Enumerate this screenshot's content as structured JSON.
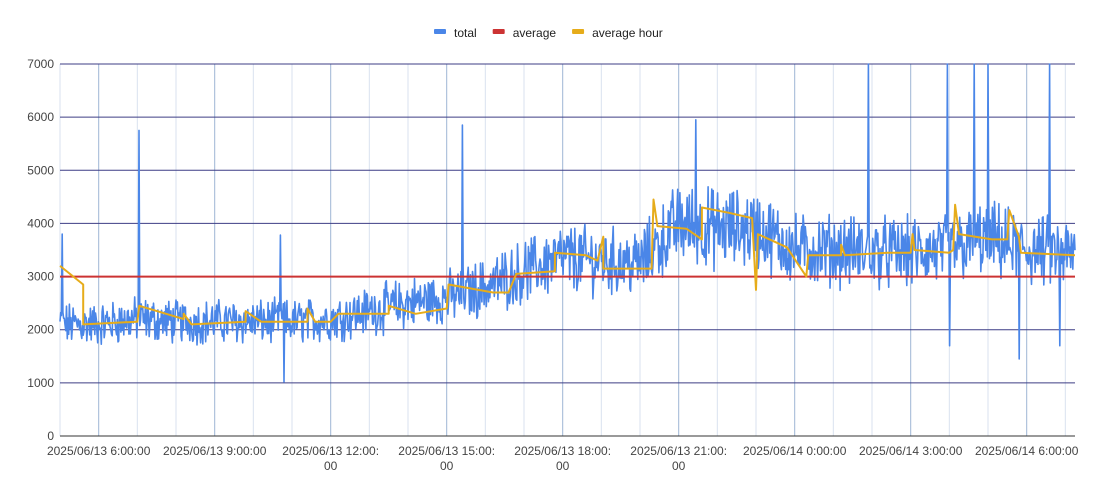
{
  "chart_data": {
    "type": "line",
    "title": "",
    "xlabel": "",
    "ylabel": "",
    "ylim": [
      0,
      7000
    ],
    "y_ticks": [
      0,
      1000,
      2000,
      3000,
      4000,
      5000,
      6000,
      7000
    ],
    "x_tick_labels": [
      [
        "2025/06/13 6:00:00"
      ],
      [
        "2025/06/13 9:00:00"
      ],
      [
        "2025/06/13 12:00:",
        "00"
      ],
      [
        "2025/06/13 15:00:",
        "00"
      ],
      [
        "2025/06/13 18:00:",
        "00"
      ],
      [
        "2025/06/13 21:00:",
        "00"
      ],
      [
        "2025/06/14 0:00:00"
      ],
      [
        "2025/06/14 3:00:00"
      ],
      [
        "2025/06/14 6:00:00"
      ]
    ],
    "x_range_hours": [
      5.0,
      31.25
    ],
    "x_tick_hours": [
      6,
      9,
      12,
      15,
      18,
      21,
      24,
      27,
      30
    ],
    "grid": true,
    "legend_position": "top",
    "series": [
      {
        "name": "total",
        "color": "#4a86e8",
        "approx_trend": [
          {
            "x": 5.0,
            "y": 2100
          },
          {
            "x": 6.0,
            "y": 2100
          },
          {
            "x": 7.0,
            "y": 2200
          },
          {
            "x": 8.0,
            "y": 2150
          },
          {
            "x": 9.0,
            "y": 2150
          },
          {
            "x": 10.0,
            "y": 2150
          },
          {
            "x": 11.0,
            "y": 2150
          },
          {
            "x": 12.0,
            "y": 2200
          },
          {
            "x": 13.0,
            "y": 2350
          },
          {
            "x": 14.0,
            "y": 2500
          },
          {
            "x": 15.0,
            "y": 2600
          },
          {
            "x": 16.0,
            "y": 2800
          },
          {
            "x": 17.0,
            "y": 3100
          },
          {
            "x": 18.0,
            "y": 3350
          },
          {
            "x": 19.0,
            "y": 3300
          },
          {
            "x": 20.0,
            "y": 3250
          },
          {
            "x": 21.0,
            "y": 4000
          },
          {
            "x": 22.0,
            "y": 3900
          },
          {
            "x": 23.0,
            "y": 3900
          },
          {
            "x": 24.0,
            "y": 3500
          },
          {
            "x": 25.0,
            "y": 3500
          },
          {
            "x": 26.0,
            "y": 3450
          },
          {
            "x": 27.0,
            "y": 3450
          },
          {
            "x": 28.0,
            "y": 3500
          },
          {
            "x": 29.0,
            "y": 3700
          },
          {
            "x": 30.0,
            "y": 3500
          },
          {
            "x": 31.25,
            "y": 3400
          }
        ],
        "spikes": [
          {
            "x": 5.05,
            "y": 3800
          },
          {
            "x": 7.05,
            "y": 5750
          },
          {
            "x": 10.8,
            "y": 1020
          },
          {
            "x": 10.7,
            "y": 3780
          },
          {
            "x": 15.4,
            "y": 5850
          },
          {
            "x": 21.45,
            "y": 5950
          },
          {
            "x": 25.9,
            "y": 7000
          },
          {
            "x": 28.0,
            "y": 1700
          },
          {
            "x": 27.95,
            "y": 7000
          },
          {
            "x": 28.65,
            "y": 7000
          },
          {
            "x": 29.0,
            "y": 7000
          },
          {
            "x": 29.8,
            "y": 1450
          },
          {
            "x": 30.6,
            "y": 7000
          },
          {
            "x": 30.85,
            "y": 1700
          }
        ]
      },
      {
        "name": "average",
        "color": "#cc3333",
        "values": [
          {
            "x": 5.0,
            "y": 3000
          },
          {
            "x": 31.25,
            "y": 3000
          }
        ]
      },
      {
        "name": "average hour",
        "color": "#e6ac1a",
        "values": [
          {
            "x": 5.0,
            "y": 3200
          },
          {
            "x": 5.6,
            "y": 2850
          },
          {
            "x": 5.6,
            "y": 2100
          },
          {
            "x": 7.0,
            "y": 2150
          },
          {
            "x": 7.05,
            "y": 2450
          },
          {
            "x": 8.2,
            "y": 2200
          },
          {
            "x": 8.2,
            "y": 2300
          },
          {
            "x": 8.4,
            "y": 2100
          },
          {
            "x": 9.8,
            "y": 2150
          },
          {
            "x": 9.8,
            "y": 2350
          },
          {
            "x": 10.2,
            "y": 2150
          },
          {
            "x": 11.4,
            "y": 2150
          },
          {
            "x": 11.4,
            "y": 2400
          },
          {
            "x": 11.6,
            "y": 2150
          },
          {
            "x": 12.0,
            "y": 2150
          },
          {
            "x": 12.2,
            "y": 2300
          },
          {
            "x": 13.5,
            "y": 2300
          },
          {
            "x": 13.5,
            "y": 2450
          },
          {
            "x": 14.2,
            "y": 2300
          },
          {
            "x": 15.0,
            "y": 2400
          },
          {
            "x": 15.05,
            "y": 2850
          },
          {
            "x": 16.2,
            "y": 2700
          },
          {
            "x": 16.6,
            "y": 2700
          },
          {
            "x": 16.8,
            "y": 3050
          },
          {
            "x": 17.8,
            "y": 3100
          },
          {
            "x": 17.8,
            "y": 3450
          },
          {
            "x": 18.6,
            "y": 3400
          },
          {
            "x": 18.9,
            "y": 3300
          },
          {
            "x": 19.05,
            "y": 3750
          },
          {
            "x": 19.05,
            "y": 3150
          },
          {
            "x": 20.3,
            "y": 3150
          },
          {
            "x": 20.35,
            "y": 4450
          },
          {
            "x": 20.45,
            "y": 3950
          },
          {
            "x": 21.2,
            "y": 3900
          },
          {
            "x": 21.6,
            "y": 3700
          },
          {
            "x": 21.6,
            "y": 4300
          },
          {
            "x": 22.3,
            "y": 4200
          },
          {
            "x": 22.9,
            "y": 4100
          },
          {
            "x": 23.0,
            "y": 2750
          },
          {
            "x": 23.05,
            "y": 3800
          },
          {
            "x": 23.8,
            "y": 3550
          },
          {
            "x": 24.3,
            "y": 3000
          },
          {
            "x": 24.35,
            "y": 3400
          },
          {
            "x": 25.2,
            "y": 3400
          },
          {
            "x": 25.2,
            "y": 3600
          },
          {
            "x": 25.3,
            "y": 3400
          },
          {
            "x": 26.4,
            "y": 3450
          },
          {
            "x": 27.0,
            "y": 3450
          },
          {
            "x": 27.05,
            "y": 3800
          },
          {
            "x": 27.1,
            "y": 3500
          },
          {
            "x": 28.0,
            "y": 3450
          },
          {
            "x": 28.1,
            "y": 3500
          },
          {
            "x": 28.15,
            "y": 4350
          },
          {
            "x": 28.25,
            "y": 3800
          },
          {
            "x": 29.1,
            "y": 3700
          },
          {
            "x": 29.5,
            "y": 3700
          },
          {
            "x": 29.55,
            "y": 4250
          },
          {
            "x": 29.8,
            "y": 3750
          },
          {
            "x": 29.85,
            "y": 3450
          },
          {
            "x": 31.25,
            "y": 3400
          }
        ]
      }
    ]
  }
}
